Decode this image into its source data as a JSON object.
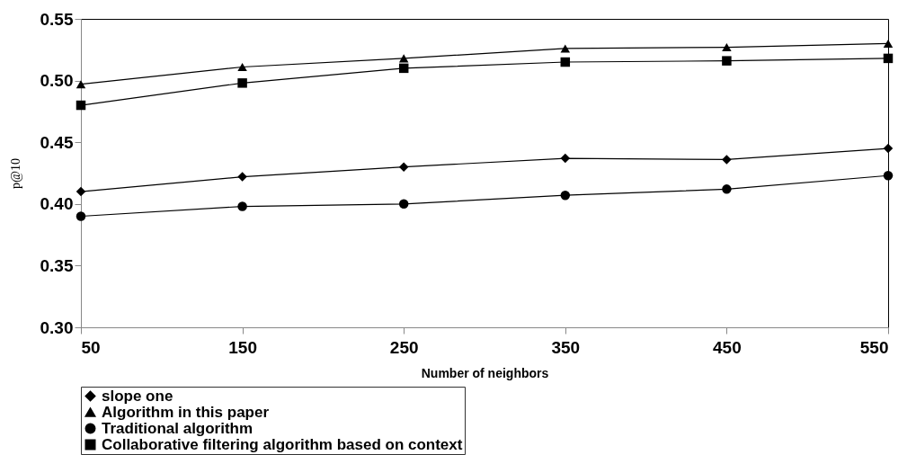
{
  "chart_data": {
    "type": "line",
    "xlabel": "Number of neighbors",
    "ylabel": "p@10",
    "x": [
      50,
      150,
      250,
      350,
      450,
      550
    ],
    "series": [
      {
        "name": "slope one",
        "color": "#000000",
        "marker": "diamond",
        "values": [
          0.41,
          0.422,
          0.43,
          0.437,
          0.436,
          0.445
        ]
      },
      {
        "name": "Algorithm in this paper",
        "color": "#000000",
        "marker": "triangle",
        "values": [
          0.497,
          0.511,
          0.518,
          0.526,
          0.527,
          0.53
        ]
      },
      {
        "name": "Traditional algorithm",
        "color": "#000000",
        "marker": "circle",
        "values": [
          0.39,
          0.398,
          0.4,
          0.407,
          0.412,
          0.423
        ]
      },
      {
        "name": "Collaborative filtering algorithm based on context",
        "color": "#000000",
        "marker": "square",
        "values": [
          0.48,
          0.498,
          0.51,
          0.515,
          0.516,
          0.518
        ]
      }
    ],
    "xlim": [
      50,
      550
    ],
    "xticks": [
      50,
      150,
      250,
      350,
      450,
      550
    ],
    "ylim": [
      0.3,
      0.55
    ],
    "yticks": [
      {
        "value": 0.3,
        "label": "0.30"
      },
      {
        "value": 0.35,
        "label": "0.35"
      },
      {
        "value": 0.4,
        "label": "0.40"
      },
      {
        "value": 0.45,
        "label": "0.45"
      },
      {
        "value": 0.5,
        "label": "0.50"
      },
      {
        "value": 0.55,
        "label": "0.55"
      }
    ],
    "grid": false,
    "legend": "bottom",
    "line_style": "solid"
  }
}
